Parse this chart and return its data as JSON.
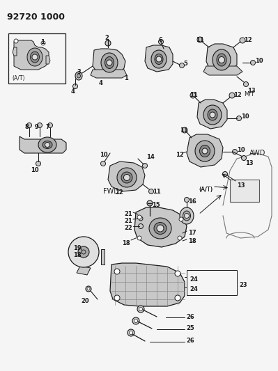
{
  "title": "92720 1000",
  "bg_color": "#f5f5f5",
  "fg_color": "#1a1a1a",
  "fig_width": 3.99,
  "fig_height": 5.33,
  "dpi": 100,
  "labels": {
    "AT_box": "(A/T)",
    "MT": "M/T",
    "AWD": "AWD",
    "FWD": "FWD",
    "AT_mid": "(A/T)"
  },
  "header": "92720 1000"
}
